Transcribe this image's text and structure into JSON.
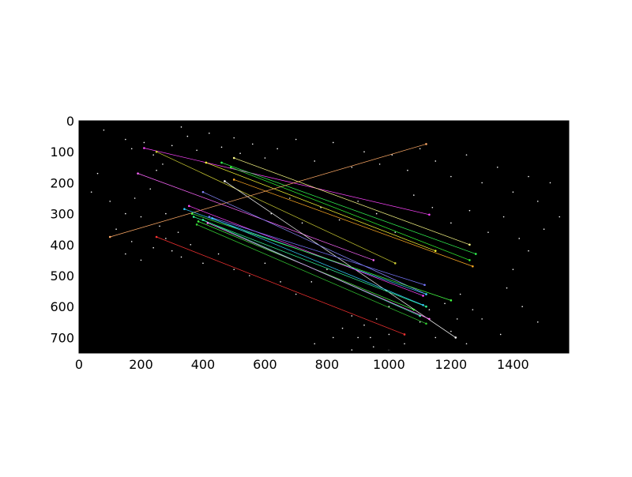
{
  "chart_data": {
    "type": "scatter",
    "title": "",
    "xlabel": "",
    "ylabel": "",
    "xlim": [
      0,
      1580
    ],
    "ylim": [
      750,
      0
    ],
    "y_inverted": true,
    "background_color": "#000000",
    "grid": false,
    "legend": "none",
    "x_ticks": [
      0,
      200,
      400,
      600,
      800,
      1000,
      1200,
      1400
    ],
    "y_ticks": [
      0,
      100,
      200,
      300,
      400,
      500,
      600,
      700
    ],
    "scatter_points": [
      [
        80,
        30
      ],
      [
        150,
        60
      ],
      [
        170,
        90
      ],
      [
        210,
        70
      ],
      [
        240,
        110
      ],
      [
        270,
        140
      ],
      [
        250,
        160
      ],
      [
        300,
        80
      ],
      [
        330,
        20
      ],
      [
        350,
        50
      ],
      [
        380,
        95
      ],
      [
        420,
        40
      ],
      [
        460,
        85
      ],
      [
        500,
        55
      ],
      [
        520,
        105
      ],
      [
        560,
        75
      ],
      [
        600,
        120
      ],
      [
        640,
        90
      ],
      [
        700,
        60
      ],
      [
        760,
        130
      ],
      [
        820,
        70
      ],
      [
        880,
        150
      ],
      [
        920,
        100
      ],
      [
        970,
        140
      ],
      [
        1010,
        110
      ],
      [
        1060,
        160
      ],
      [
        1100,
        90
      ],
      [
        1150,
        130
      ],
      [
        1200,
        180
      ],
      [
        1250,
        110
      ],
      [
        1300,
        200
      ],
      [
        1350,
        150
      ],
      [
        1400,
        230
      ],
      [
        1450,
        180
      ],
      [
        1480,
        260
      ],
      [
        1520,
        200
      ],
      [
        1550,
        310
      ],
      [
        1500,
        350
      ],
      [
        1450,
        420
      ],
      [
        1400,
        480
      ],
      [
        1380,
        540
      ],
      [
        1430,
        600
      ],
      [
        1480,
        650
      ],
      [
        1360,
        690
      ],
      [
        1300,
        640
      ],
      [
        1250,
        720
      ],
      [
        1200,
        680
      ],
      [
        1150,
        700
      ],
      [
        1100,
        650
      ],
      [
        1050,
        720
      ],
      [
        1000,
        690
      ],
      [
        950,
        730
      ],
      [
        900,
        700
      ],
      [
        850,
        670
      ],
      [
        1130,
        610
      ],
      [
        1180,
        590
      ],
      [
        1230,
        560
      ],
      [
        1270,
        610
      ],
      [
        1220,
        640
      ],
      [
        1000,
        600
      ],
      [
        960,
        640
      ],
      [
        920,
        660
      ],
      [
        880,
        630
      ],
      [
        60,
        170
      ],
      [
        40,
        230
      ],
      [
        100,
        260
      ],
      [
        150,
        300
      ],
      [
        120,
        350
      ],
      [
        170,
        390
      ],
      [
        150,
        430
      ],
      [
        200,
        450
      ],
      [
        240,
        410
      ],
      [
        280,
        380
      ],
      [
        300,
        420
      ],
      [
        330,
        440
      ],
      [
        360,
        400
      ],
      [
        260,
        340
      ],
      [
        200,
        310
      ],
      [
        180,
        250
      ],
      [
        230,
        220
      ],
      [
        280,
        300
      ],
      [
        320,
        360
      ],
      [
        400,
        460
      ],
      [
        450,
        430
      ],
      [
        500,
        480
      ],
      [
        550,
        500
      ],
      [
        600,
        460
      ],
      [
        650,
        520
      ],
      [
        700,
        560
      ],
      [
        750,
        520
      ],
      [
        800,
        480
      ],
      [
        620,
        300
      ],
      [
        680,
        250
      ],
      [
        720,
        330
      ],
      [
        780,
        280
      ],
      [
        840,
        320
      ],
      [
        900,
        260
      ],
      [
        960,
        300
      ],
      [
        1020,
        360
      ],
      [
        1080,
        240
      ],
      [
        1140,
        280
      ],
      [
        1200,
        330
      ],
      [
        1260,
        290
      ],
      [
        1320,
        360
      ],
      [
        1370,
        310
      ],
      [
        1420,
        380
      ],
      [
        760,
        720
      ],
      [
        820,
        700
      ],
      [
        880,
        740
      ],
      [
        940,
        700
      ],
      [
        1000,
        740
      ]
    ],
    "match_lines": [
      {
        "x1": 210,
        "y1": 88,
        "x2": 1130,
        "y2": 303,
        "color": "#ff44ff"
      },
      {
        "x1": 250,
        "y1": 100,
        "x2": 1020,
        "y2": 460,
        "color": "#cccc33"
      },
      {
        "x1": 190,
        "y1": 170,
        "x2": 950,
        "y2": 450,
        "color": "#ff66ff"
      },
      {
        "x1": 500,
        "y1": 120,
        "x2": 1260,
        "y2": 400,
        "color": "#ffff88"
      },
      {
        "x1": 460,
        "y1": 135,
        "x2": 1280,
        "y2": 430,
        "color": "#33ff55"
      },
      {
        "x1": 490,
        "y1": 150,
        "x2": 1260,
        "y2": 450,
        "color": "#33ff33"
      },
      {
        "x1": 500,
        "y1": 190,
        "x2": 1270,
        "y2": 470,
        "color": "#ffaa22"
      },
      {
        "x1": 470,
        "y1": 195,
        "x2": 1215,
        "y2": 700,
        "color": "#ffffff"
      },
      {
        "x1": 410,
        "y1": 135,
        "x2": 1150,
        "y2": 420,
        "color": "#ffff33"
      },
      {
        "x1": 100,
        "y1": 375,
        "x2": 1120,
        "y2": 75,
        "color": "#ffaa66"
      },
      {
        "x1": 400,
        "y1": 230,
        "x2": 1120,
        "y2": 560,
        "color": "#8888ff"
      },
      {
        "x1": 340,
        "y1": 285,
        "x2": 1120,
        "y2": 560,
        "color": "#33ccff"
      },
      {
        "x1": 355,
        "y1": 275,
        "x2": 1110,
        "y2": 565,
        "color": "#ff44ff"
      },
      {
        "x1": 365,
        "y1": 300,
        "x2": 1200,
        "y2": 580,
        "color": "#44ff44"
      },
      {
        "x1": 370,
        "y1": 310,
        "x2": 1120,
        "y2": 600,
        "color": "#33ff99"
      },
      {
        "x1": 385,
        "y1": 325,
        "x2": 1080,
        "y2": 610,
        "color": "#44ff44"
      },
      {
        "x1": 400,
        "y1": 320,
        "x2": 1100,
        "y2": 630,
        "color": "#33ffaa"
      },
      {
        "x1": 380,
        "y1": 335,
        "x2": 1120,
        "y2": 655,
        "color": "#33cc33"
      },
      {
        "x1": 420,
        "y1": 310,
        "x2": 1115,
        "y2": 530,
        "color": "#7777ff"
      },
      {
        "x1": 250,
        "y1": 375,
        "x2": 1050,
        "y2": 690,
        "color": "#ff3333"
      },
      {
        "x1": 415,
        "y1": 330,
        "x2": 1130,
        "y2": 640,
        "color": "#ff77ff"
      },
      {
        "x1": 430,
        "y1": 315,
        "x2": 1110,
        "y2": 595,
        "color": "#33ccff"
      }
    ]
  }
}
